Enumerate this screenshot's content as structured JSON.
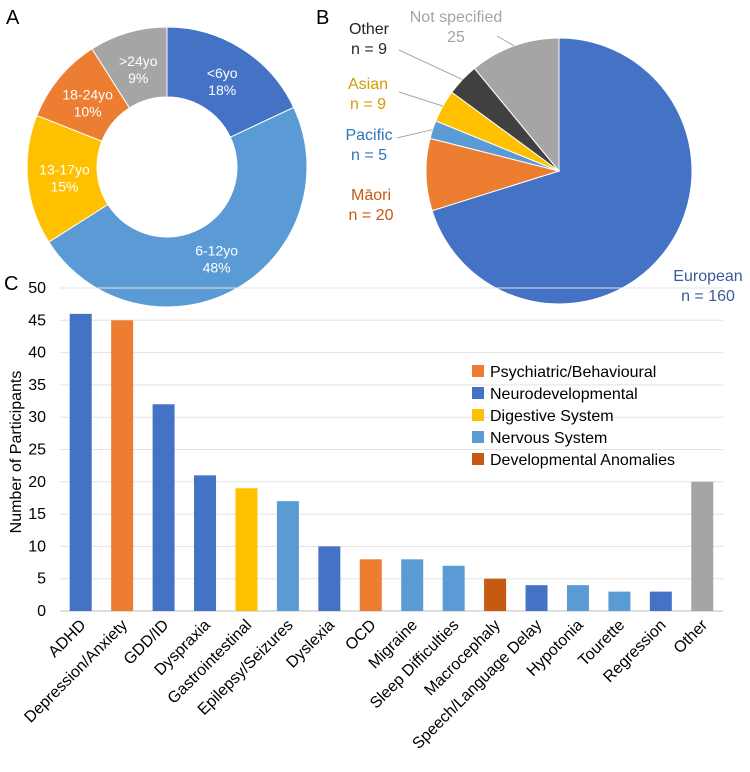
{
  "panel_labels": {
    "a": "A",
    "b": "B",
    "c": "C"
  },
  "chart_data": [
    {
      "type": "pie",
      "variant": "donut",
      "panel": "A",
      "slices": [
        {
          "label": "<6yo",
          "value": 18,
          "text": "18%",
          "color": "#4472c4"
        },
        {
          "label": "6-12yo",
          "value": 48,
          "text": "48%",
          "color": "#5b9bd5"
        },
        {
          "label": "13-17yo",
          "value": 15,
          "text": "15%",
          "color": "#ffc000"
        },
        {
          "label": "18-24yo",
          "value": 10,
          "text": "10%",
          "color": "#ed7d31"
        },
        {
          "label": ">24yo",
          "value": 9,
          "text": "9%",
          "color": "#a5a5a5"
        }
      ]
    },
    {
      "type": "pie",
      "panel": "B",
      "slices": [
        {
          "label": "European",
          "value": 160,
          "text": "n = 160",
          "color": "#4472c4",
          "label_color": "#3a5c9a"
        },
        {
          "label": "Māori",
          "value": 20,
          "text": "n = 20",
          "color": "#ed7d31",
          "label_color": "#c55a11"
        },
        {
          "label": "Pacific",
          "value": 5,
          "text": "n = 5",
          "color": "#5b9bd5",
          "label_color": "#2e75b6"
        },
        {
          "label": "Asian",
          "value": 9,
          "text": "n = 9",
          "color": "#ffc000",
          "label_color": "#d49b00"
        },
        {
          "label": "Other",
          "value": 9,
          "text": "n = 9",
          "color": "#404040",
          "label_color": "#262626"
        },
        {
          "label": "Not specified",
          "value": 25,
          "text": "25",
          "color": "#a5a5a5",
          "label_color": "#a5a5a5"
        }
      ]
    },
    {
      "type": "bar",
      "panel": "C",
      "ylabel": "Number of Participants",
      "xlabel": "",
      "ylim": [
        0,
        50
      ],
      "yticks": [
        0,
        5,
        10,
        15,
        20,
        25,
        30,
        35,
        40,
        45,
        50
      ],
      "grid": true,
      "legend_position": "top-right",
      "legend": [
        {
          "name": "Psychiatric/Behavioural",
          "color": "#ed7d31"
        },
        {
          "name": "Neurodevelopmental",
          "color": "#4472c4"
        },
        {
          "name": "Digestive System",
          "color": "#ffc000"
        },
        {
          "name": "Nervous System",
          "color": "#5b9bd5"
        },
        {
          "name": "Developmental Anomalies",
          "color": "#c55a11"
        }
      ],
      "categories": [
        "ADHD",
        "Depression/Anxiety",
        "GDD/ID",
        "Dyspraxia",
        "Gastrointestinal",
        "Epilepsy/Seizures",
        "Dyslexia",
        "OCD",
        "Migraine",
        "Sleep Difficulties",
        "Macrocephaly",
        "Speech/Language Delay",
        "Hypotonia",
        "Tourette",
        "Regression",
        "Other"
      ],
      "values": [
        46,
        45,
        32,
        21,
        19,
        17,
        10,
        8,
        8,
        7,
        5,
        4,
        4,
        3,
        3,
        20
      ],
      "colors": [
        "#4472c4",
        "#ed7d31",
        "#4472c4",
        "#4472c4",
        "#ffc000",
        "#5b9bd5",
        "#4472c4",
        "#ed7d31",
        "#5b9bd5",
        "#5b9bd5",
        "#c55a11",
        "#4472c4",
        "#5b9bd5",
        "#5b9bd5",
        "#4472c4",
        "#a5a5a5"
      ]
    }
  ]
}
